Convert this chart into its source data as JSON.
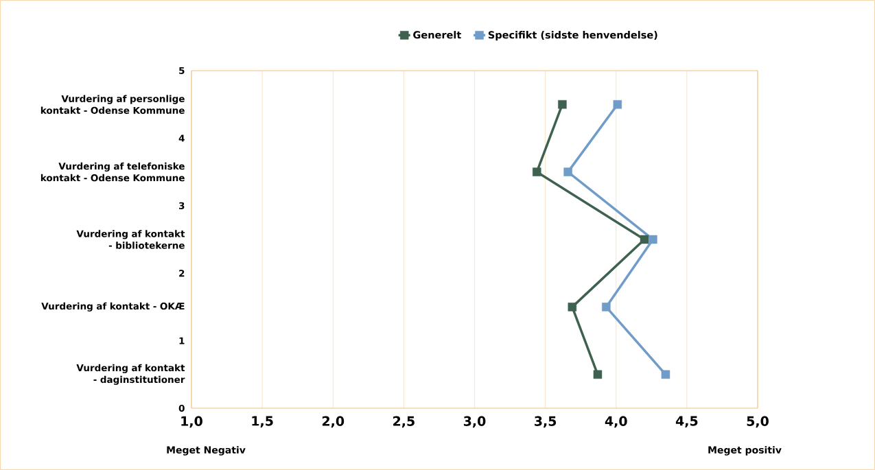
{
  "chart_data": {
    "type": "line",
    "legend": "top",
    "grid": "x",
    "marker": "square",
    "line_style": "solid",
    "xlim": [
      1,
      5
    ],
    "xticks": [
      {
        "value": 1,
        "label": "1,0"
      },
      {
        "value": 1.5,
        "label": "1,5"
      },
      {
        "value": 2,
        "label": "2,0"
      },
      {
        "value": 2.5,
        "label": "2,5"
      },
      {
        "value": 3,
        "label": "3,0"
      },
      {
        "value": 3.5,
        "label": "3,5"
      },
      {
        "value": 4,
        "label": "4,0"
      },
      {
        "value": 4.5,
        "label": "4,5"
      },
      {
        "value": 5,
        "label": "5,0"
      }
    ],
    "ylim": [
      0,
      5
    ],
    "yticks": [
      0,
      {
        "value": 0.5,
        "label": "Vurdering af kontakt - daginstitutioner"
      },
      1,
      {
        "value": 1.5,
        "label": "Vurdering af kontakt - OKÆ"
      },
      2,
      {
        "value": 2.5,
        "label": "Vurdering af kontakt - bibliotekerne"
      },
      3,
      {
        "value": 3.5,
        "label": "Vurdering af telefoniske kontakt - Odense Kommune"
      },
      4,
      {
        "value": 4.5,
        "label": "Vurdering af personlige kontakt - Odense Kommune"
      },
      5
    ],
    "series": [
      {
        "name": "Generelt",
        "color": "#3f6150",
        "x": [
          3.62,
          3.44,
          4.2,
          3.69,
          3.87
        ],
        "values": [
          4.5,
          3.5,
          2.5,
          1.5,
          0.5
        ]
      },
      {
        "name": "Specifikt (sidste henvendelse)",
        "color": "#6f9cc8",
        "x": [
          4.01,
          3.66,
          4.26,
          3.93,
          4.35
        ],
        "values": [
          4.5,
          3.5,
          2.5,
          1.5,
          0.5
        ]
      }
    ],
    "annotations": [
      "Meget Negativ",
      "Meget positiv"
    ]
  }
}
